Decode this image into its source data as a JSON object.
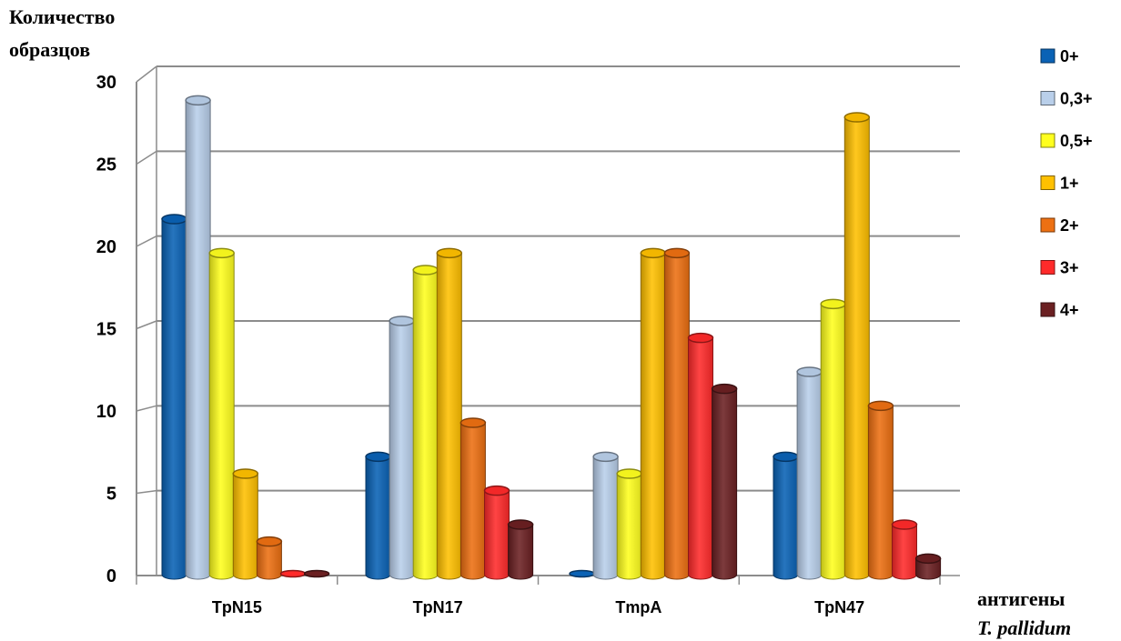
{
  "chart_data": {
    "type": "bar",
    "ylabel_line1": "Количество",
    "ylabel_line2": "образцов",
    "xlabel_line1": "антигены",
    "xlabel_line2": "T. pallidum",
    "ylim": [
      0,
      30
    ],
    "yticks": [
      "0",
      "5",
      "10",
      "15",
      "20",
      "25",
      "30"
    ],
    "grid": true,
    "legend_position": "right",
    "categories": [
      "TpN15",
      "TpN17",
      "TmpA",
      "TpN47"
    ],
    "series": [
      {
        "name": "0+",
        "color": "#0a62b5",
        "values": [
          21,
          7,
          0,
          7
        ]
      },
      {
        "name": "0,3+",
        "color": "#b9cfea",
        "values": [
          28,
          15,
          7,
          12
        ]
      },
      {
        "name": "0,5+",
        "color": "#ffff1e",
        "values": [
          19,
          18,
          6,
          16
        ]
      },
      {
        "name": "1+",
        "color": "#ffc000",
        "values": [
          6,
          19,
          19,
          27
        ]
      },
      {
        "name": "2+",
        "color": "#ed7012",
        "values": [
          2,
          9,
          19,
          10
        ]
      },
      {
        "name": "3+",
        "color": "#ff2a2a",
        "values": [
          0,
          5,
          14,
          3
        ]
      },
      {
        "name": "4+",
        "color": "#6b2022",
        "values": [
          0,
          3,
          11,
          1
        ]
      }
    ]
  }
}
